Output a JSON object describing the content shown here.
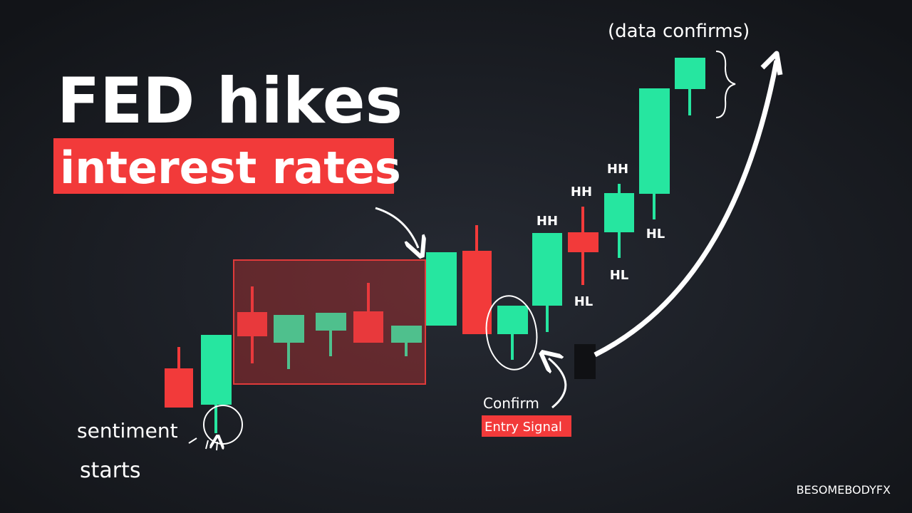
{
  "headline": {
    "line1": "FED hikes",
    "line2": "interest rates"
  },
  "annotations": {
    "data_confirms": "(data confirms)",
    "confirm": "Confirm",
    "entry_signal": "Entry Signal",
    "sentiment": "sentiment",
    "starts": "starts"
  },
  "labels": {
    "hh": [
      "HH",
      "HH",
      "HH"
    ],
    "hl": [
      "HL",
      "HL",
      "HL"
    ]
  },
  "watermark": "BESOMEBODYFX"
}
